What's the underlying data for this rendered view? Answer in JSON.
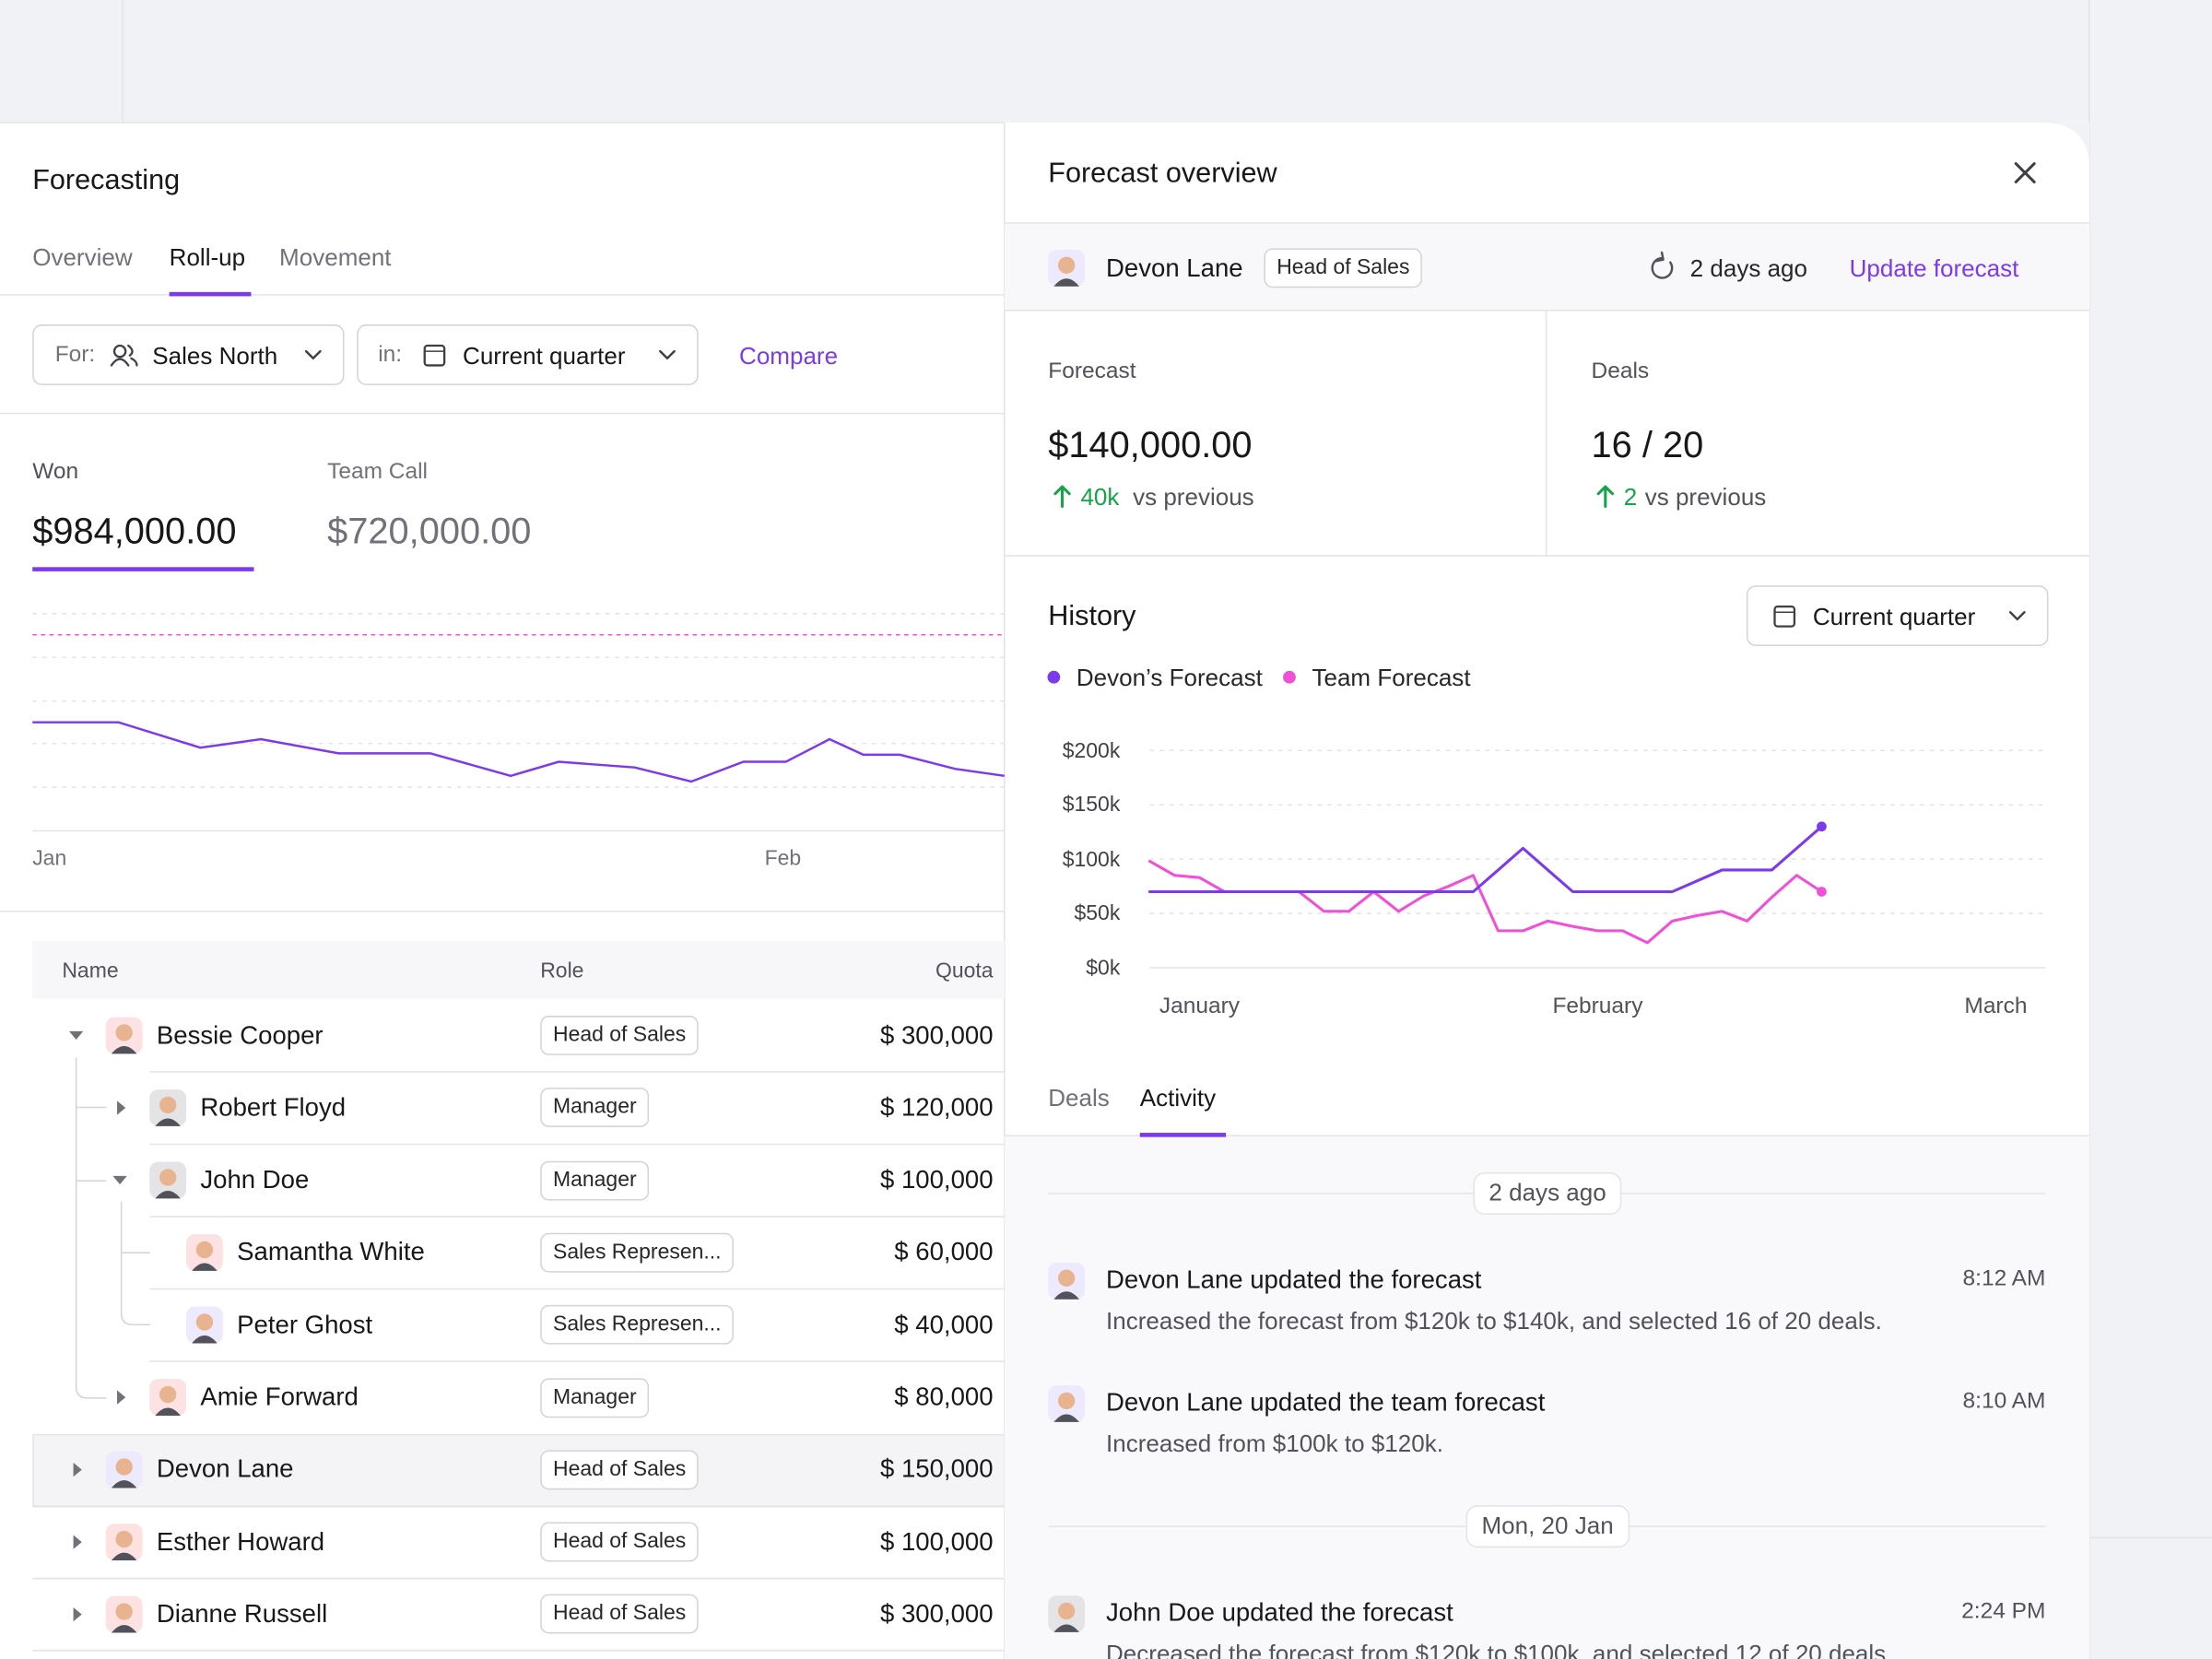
{
  "left_panel": {
    "title": "Forecasting",
    "tabs": [
      "Overview",
      "Roll-up",
      "Movement"
    ],
    "filters": {
      "for_label": "For:",
      "for_value": "Sales North",
      "in_label": "in:",
      "in_value": "Current quarter",
      "compare": "Compare"
    },
    "stats": [
      {
        "label": "Won",
        "value": "$984,000.00"
      },
      {
        "label": "Team Call",
        "value": "$720,000.00"
      }
    ],
    "chart_labels": [
      "Jan",
      "Feb"
    ],
    "table": {
      "columns": [
        "Name",
        "Role",
        "Quota"
      ],
      "rows": [
        {
          "name": "Bessie Cooper",
          "role": "Head of Sales",
          "quota": "$ 300,000"
        },
        {
          "name": "Robert Floyd",
          "role": "Manager",
          "quota": "$ 120,000"
        },
        {
          "name": "John Doe",
          "role": "Manager",
          "quota": "$ 100,000"
        },
        {
          "name": "Samantha White",
          "role": "Sales Represen...",
          "quota": "$ 60,000"
        },
        {
          "name": "Peter Ghost",
          "role": "Sales Represen...",
          "quota": "$ 40,000"
        },
        {
          "name": "Amie Forward",
          "role": "Manager",
          "quota": "$ 80,000"
        },
        {
          "name": "Devon Lane",
          "role": "Head of Sales",
          "quota": "$ 150,000"
        },
        {
          "name": "Esther Howard",
          "role": "Head of Sales",
          "quota": "$ 100,000"
        },
        {
          "name": "Dianne Russell",
          "role": "Head of Sales",
          "quota": "$ 300,000"
        }
      ]
    }
  },
  "overview": {
    "title": "Forecast overview",
    "person": "Devon Lane",
    "role": "Head of Sales",
    "updated": "2 days ago",
    "action": "Update forecast",
    "stats": [
      {
        "label": "Forecast",
        "value": "$140,000.00",
        "change": "40k",
        "change_text": "vs previous"
      },
      {
        "label": "Deals",
        "value": "16 / 20",
        "change": "2",
        "change_text": "vs previous"
      }
    ],
    "history_title": "History",
    "period": "Current quarter",
    "tabs": [
      "Deals",
      "Activity"
    ],
    "activity": [
      {
        "date": "2 days ago",
        "items": [
          {
            "title": "Devon Lane updated the forecast",
            "time": "8:12 AM",
            "detail": "Increased the forecast from $120k to $140k, and selected 16 of 20 deals."
          },
          {
            "title": "Devon Lane updated the team forecast",
            "time": "8:10 AM",
            "detail": "Increased from $100k to $120k."
          }
        ]
      },
      {
        "date": "Mon, 20 Jan",
        "items": [
          {
            "title": "John Doe updated the forecast",
            "time": "2:24 PM",
            "detail": "Decreased the forecast from $120k to $100k, and selected 12 of 20 deals."
          }
        ]
      }
    ]
  },
  "chart_data": {
    "type": "line",
    "categories": [
      null,
      null,
      "January",
      null,
      null,
      null,
      null,
      null,
      null,
      null,
      null,
      null,
      null,
      null,
      null,
      null,
      null,
      null,
      "February",
      null,
      null,
      null,
      null,
      null,
      null,
      null,
      null,
      null,
      null,
      null,
      null,
      null,
      null,
      null,
      "March",
      null,
      null
    ],
    "series": [
      {
        "name": "Devon’s Forecast",
        "color": "#7c3aed",
        "values": [
          70000,
          70000,
          70000,
          70000,
          70000,
          70000,
          70000,
          70000,
          70000,
          70000,
          70000,
          70000,
          70000,
          70000,
          90000,
          110000,
          90000,
          70000,
          70000,
          70000,
          70000,
          70000,
          80000,
          90000,
          90000,
          90000,
          110000,
          130000,
          null,
          null,
          null,
          null,
          null,
          null,
          null,
          null,
          null
        ]
      },
      {
        "name": "Team Forecast",
        "color": "#f050d8",
        "values": [
          98000,
          85000,
          83000,
          70000,
          70000,
          70000,
          70000,
          52000,
          52000,
          70000,
          52000,
          66000,
          75000,
          85000,
          34000,
          34000,
          43000,
          38000,
          34000,
          34000,
          23000,
          43000,
          48000,
          52000,
          43000,
          65000,
          85000,
          70000,
          null,
          null,
          null,
          null,
          null,
          null,
          null,
          null,
          null
        ]
      }
    ],
    "ylim": [
      0,
      200000
    ],
    "yticks": [
      {
        "value": 0,
        "label": "$0k"
      },
      {
        "value": 50000,
        "label": "$50k"
      },
      {
        "value": 100000,
        "label": "$100k"
      },
      {
        "value": 150000,
        "label": "$150k"
      },
      {
        "value": 200000,
        "label": "$200k"
      }
    ],
    "grid": true
  }
}
